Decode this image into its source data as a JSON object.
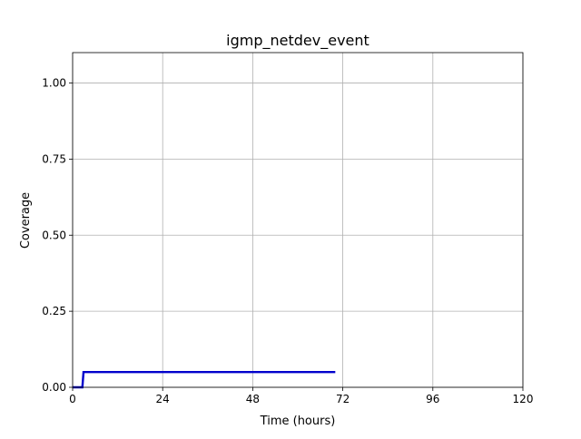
{
  "chart_data": {
    "type": "line",
    "title": "igmp_netdev_event",
    "xlabel": "Time (hours)",
    "ylabel": "Coverage",
    "xlim": [
      0,
      120
    ],
    "ylim": [
      0,
      1.1
    ],
    "xticks": [
      0,
      24,
      48,
      72,
      96,
      120
    ],
    "xtick_labels": [
      "0",
      "24",
      "48",
      "72",
      "96",
      "120"
    ],
    "yticks": [
      0,
      0.25,
      0.5,
      0.75,
      1.0
    ],
    "ytick_labels": [
      "0.00",
      "0.25",
      "0.50",
      "0.75",
      "1.00"
    ],
    "grid": true,
    "legend": "none",
    "series": [
      {
        "color": "#0000cc",
        "x": [
          0,
          2.6,
          2.9,
          70
        ],
        "y": [
          0,
          0,
          0.05,
          0.05
        ]
      }
    ]
  }
}
